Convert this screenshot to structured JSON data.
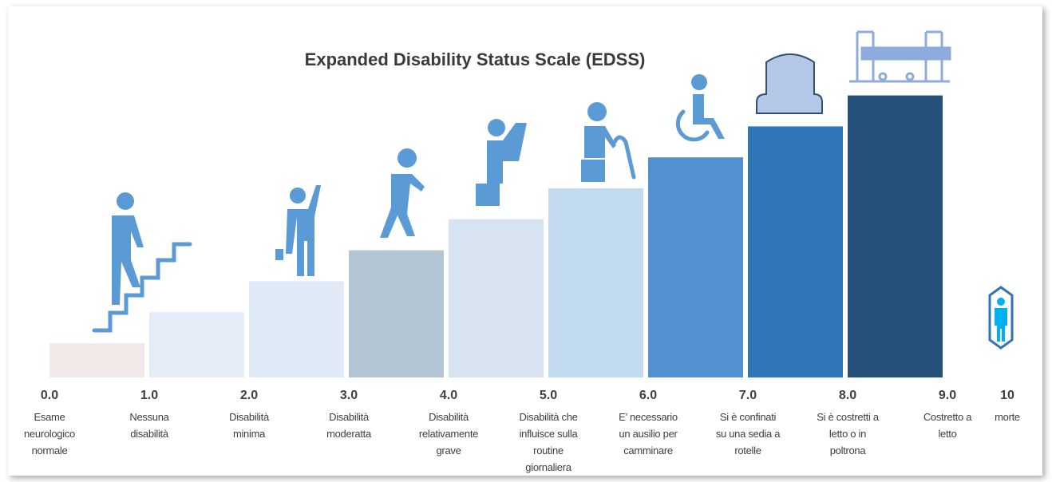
{
  "title": "Expanded Disability Status Scale (EDSS)",
  "steps": [
    {
      "score": "0.0",
      "lines": [
        "Esame",
        "neurologico",
        "normale"
      ]
    },
    {
      "score": "1.0",
      "lines": [
        "Nessuna",
        "disabilità"
      ]
    },
    {
      "score": "2.0",
      "lines": [
        "Disabilità",
        "minima"
      ]
    },
    {
      "score": "3.0",
      "lines": [
        "Disabilità",
        "moderatta"
      ]
    },
    {
      "score": "4.0",
      "lines": [
        "Disabilità",
        "relativamente",
        "grave"
      ]
    },
    {
      "score": "5.0",
      "lines": [
        "Disabilità che",
        "influisce sulla",
        "routine",
        "giornaliera"
      ]
    },
    {
      "score": "6.0",
      "lines": [
        "E’ necessario",
        "un ausilio per",
        "camminare"
      ]
    },
    {
      "score": "7.0",
      "lines": [
        "Si è confinati",
        "su una sedia a",
        "rotelle"
      ]
    },
    {
      "score": "8.0",
      "lines": [
        "Si è costretti a",
        "letto o in",
        "poltrona"
      ]
    },
    {
      "score": "9.0",
      "lines": [
        "Costretto a",
        "letto"
      ]
    },
    {
      "score": "10",
      "lines": [
        "morte"
      ]
    }
  ]
}
